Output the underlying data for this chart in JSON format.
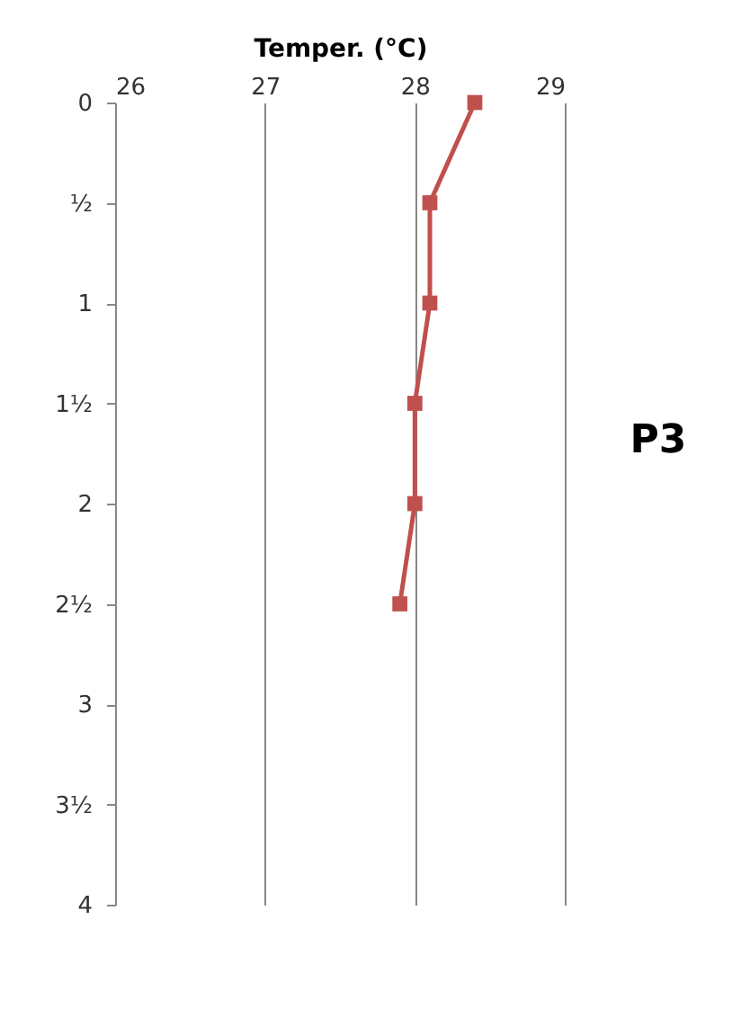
{
  "chart_data": {
    "type": "line",
    "xlabel": "Temper. (°C)",
    "annotations": [
      "P3"
    ],
    "series": [
      {
        "color": "#c0504d",
        "x": [
          28.4,
          28.1,
          28.1,
          28.0,
          28.0,
          27.9
        ],
        "values": [
          0,
          0.5,
          1,
          1.5,
          2,
          2.5
        ]
      }
    ],
    "xlim": [
      26,
      29
    ],
    "xticks": [
      26,
      27,
      28,
      29
    ],
    "ylim": [
      4,
      0
    ],
    "yticks": [
      0,
      {
        "value": 0.5,
        "label": "½"
      },
      1,
      {
        "value": 1.5,
        "label": "1½"
      },
      2,
      {
        "value": 2.5,
        "label": "2½"
      },
      3,
      {
        "value": 3.5,
        "label": "3½"
      },
      4
    ],
    "grid": "x",
    "marker": "square",
    "line_style": "solid"
  }
}
